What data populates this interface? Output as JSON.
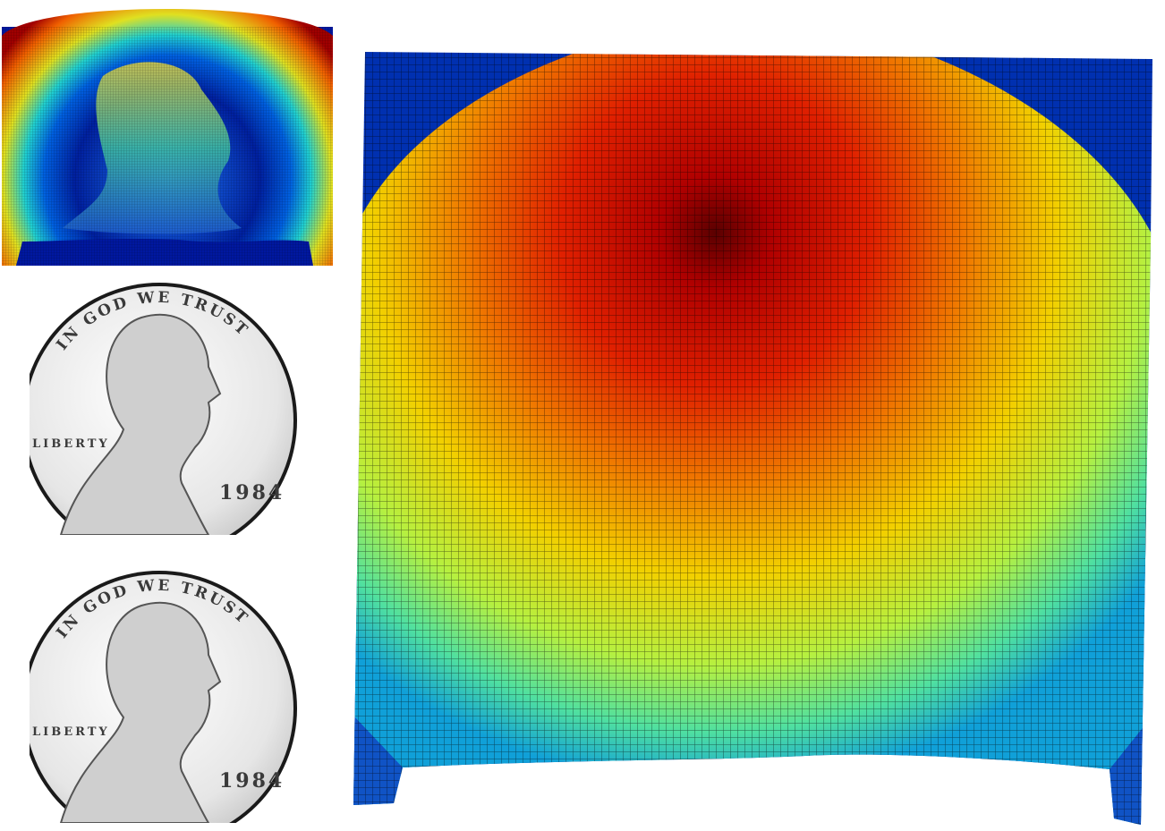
{
  "coin_panels": [
    {
      "motto": "IN GOD WE TRUST",
      "legend": "LIBERTY",
      "year": "1984"
    },
    {
      "motto": "IN GOD WE TRUST",
      "legend": "LIBERTY",
      "year": "1984"
    }
  ]
}
